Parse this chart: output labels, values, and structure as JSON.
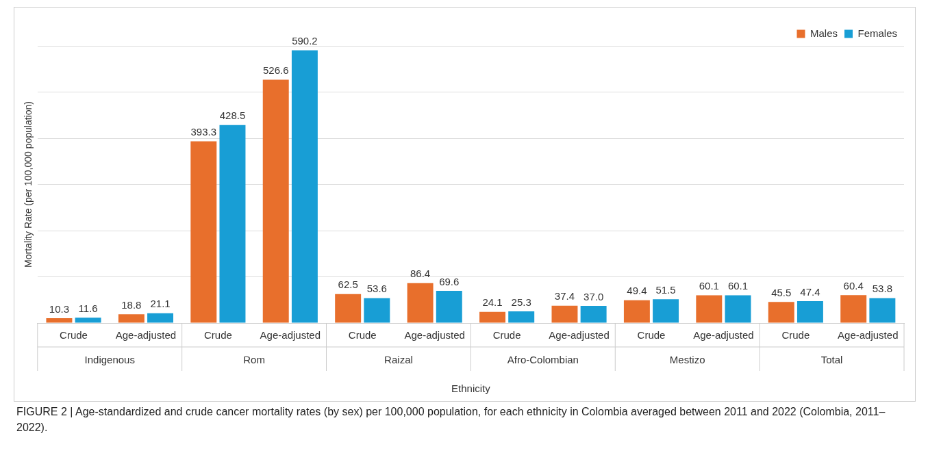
{
  "chart_data": {
    "type": "bar",
    "xlabel": "Ethnicity",
    "ylabel": "Mortality Rate (per 100,000 population)",
    "categories": [
      "Crude",
      "Age-adjusted",
      "Crude",
      "Age-adjusted",
      "Crude",
      "Age-adjusted",
      "Crude",
      "Age-adjusted",
      "Crude",
      "Age-adjusted",
      "Crude",
      "Age-adjusted"
    ],
    "series": [
      {
        "name": "Males",
        "color": "#e86f2c",
        "values": [
          10.3,
          18.8,
          393.3,
          526.6,
          62.5,
          86.4,
          24.1,
          37.4,
          49.4,
          60.1,
          45.5,
          60.4
        ],
        "value_labels": [
          "10.3",
          "18.8",
          "393.3",
          "526.6",
          "62.5",
          "86.4",
          "24.1",
          "37.4",
          "49.4",
          "60.1",
          "45.5",
          "60.4"
        ]
      },
      {
        "name": "Females",
        "color": "#189ed5",
        "values": [
          11.6,
          21.1,
          428.5,
          590.2,
          53.6,
          69.6,
          25.3,
          37.0,
          51.5,
          60.1,
          47.4,
          53.8
        ],
        "value_labels": [
          "11.6",
          "21.1",
          "428.5",
          "590.2",
          "53.6",
          "69.6",
          "25.3",
          "37.0",
          "51.5",
          "60.1",
          "47.4",
          "53.8"
        ]
      }
    ],
    "annotations": [
      "Indigenous",
      "Rom",
      "Raizal",
      "Afro-Colombian",
      "Mestizo",
      "Total",
      "FIGURE 2 | Age-standardized and crude cancer mortality rates (by sex) per 100,000 population, for each ethnicity in Colombia averaged between 2011 and 2022 (Colombia, 2011–2022)."
    ],
    "grid": "y",
    "legend": "top right",
    "tick_labels": "x"
  }
}
